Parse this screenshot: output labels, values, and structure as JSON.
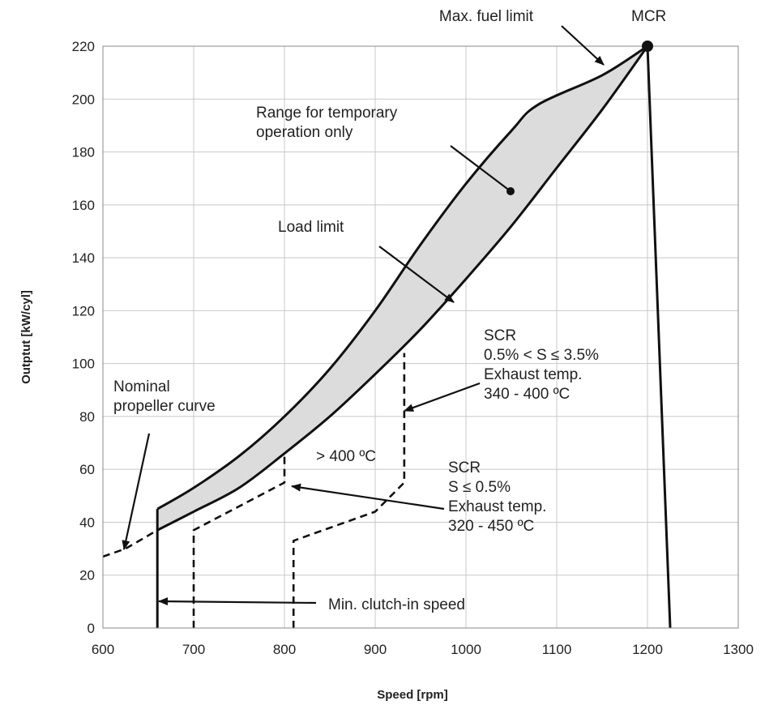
{
  "chart_data": {
    "type": "line",
    "title": "",
    "xlabel": "Speed [rpm]",
    "ylabel": "Outptut [kW/cyl]",
    "xlim": [
      600,
      1300
    ],
    "ylim": [
      0,
      220
    ],
    "x_ticks": [
      600,
      700,
      800,
      900,
      1000,
      1100,
      1200,
      1300
    ],
    "y_ticks": [
      0,
      20,
      40,
      60,
      80,
      100,
      120,
      140,
      160,
      180,
      200,
      220
    ],
    "grid": true,
    "legend": "none",
    "series": [
      {
        "style": "solid-thick",
        "points": [
          [
            660,
            37
          ],
          [
            700,
            44
          ],
          [
            750,
            53
          ],
          [
            800,
            66
          ],
          [
            850,
            80
          ],
          [
            900,
            96
          ],
          [
            950,
            113
          ],
          [
            1000,
            132
          ],
          [
            1050,
            152
          ],
          [
            1100,
            174
          ],
          [
            1150,
            196
          ],
          [
            1200,
            220
          ]
        ]
      },
      {
        "style": "dashed",
        "points": [
          [
            600,
            27
          ],
          [
            625,
            30
          ],
          [
            660,
            37
          ]
        ]
      },
      {
        "style": "solid-thick",
        "points": [
          [
            660,
            45
          ],
          [
            700,
            53
          ],
          [
            750,
            65
          ],
          [
            800,
            80
          ],
          [
            850,
            98
          ],
          [
            900,
            120
          ],
          [
            950,
            145
          ],
          [
            1000,
            168
          ],
          [
            1050,
            188
          ],
          [
            1080,
            198
          ],
          [
            1150,
            209
          ],
          [
            1200,
            220
          ]
        ]
      },
      {
        "style": "solid-thick",
        "points": [
          [
            660,
            0
          ],
          [
            660,
            45
          ]
        ]
      },
      {
        "style": "solid-thick",
        "points": [
          [
            1200,
            220
          ],
          [
            1225,
            0
          ]
        ]
      },
      {
        "style": "dashed",
        "points": [
          [
            700,
            0
          ],
          [
            700,
            37
          ],
          [
            800,
            55
          ],
          [
            800,
            66
          ]
        ]
      },
      {
        "style": "dashed",
        "points": [
          [
            810,
            0
          ],
          [
            810,
            33
          ],
          [
            900,
            44
          ],
          [
            932,
            55
          ],
          [
            932,
            104
          ]
        ]
      }
    ],
    "points": [
      {
        "label": "MCR",
        "x": 1200,
        "y": 220
      }
    ],
    "annotations": [
      {
        "id": "max-fuel",
        "lines": [
          "Max. fuel limit"
        ],
        "anchor": "middle"
      },
      {
        "id": "mcr",
        "lines": [
          "MCR"
        ],
        "anchor": "start"
      },
      {
        "id": "temp-range",
        "lines": [
          "Range for temporary",
          "operation only"
        ],
        "anchor": "start"
      },
      {
        "id": "load-limit",
        "lines": [
          "Load limit"
        ],
        "anchor": "start"
      },
      {
        "id": "scr-high",
        "lines": [
          "SCR",
          "0.5% < S ≤ 3.5%",
          "Exhaust temp.",
          "340 - 400 ºC"
        ],
        "anchor": "start"
      },
      {
        "id": "nominal",
        "lines": [
          "Nominal",
          "propeller curve"
        ],
        "anchor": "start"
      },
      {
        "id": "gt400",
        "lines": [
          "> 400 ºC"
        ],
        "anchor": "start"
      },
      {
        "id": "scr-low",
        "lines": [
          "SCR",
          "S ≤ 0.5%",
          "Exhaust temp.",
          "320 - 450 ºC"
        ],
        "anchor": "start"
      },
      {
        "id": "clutch",
        "lines": [
          "Min. clutch-in speed"
        ],
        "anchor": "start"
      }
    ],
    "colors": {
      "shaded_region": "#dcdcdc",
      "line": "#111111",
      "grid": "#c8c8c8"
    }
  }
}
